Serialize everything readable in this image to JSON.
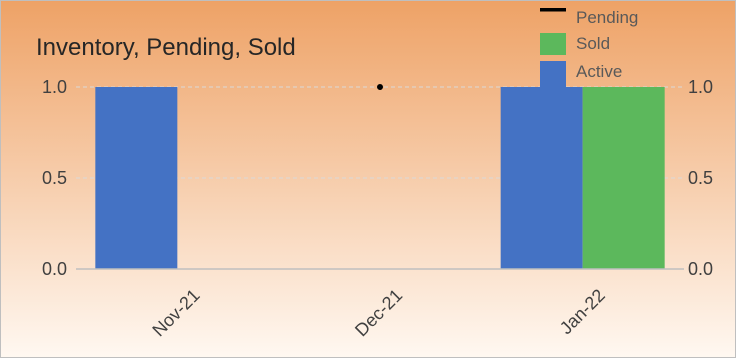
{
  "chart_data": {
    "type": "bar",
    "title": "Inventory, Pending, Sold",
    "xlabel": "",
    "ylabel": "",
    "categories": [
      "Nov-21",
      "Dec-21",
      "Jan-22"
    ],
    "ylim": [
      0,
      1.0
    ],
    "y_ticks": [
      "0.0",
      "0.5",
      "1.0"
    ],
    "y_ticks_right": [
      "0.0",
      "0.5",
      "1.0"
    ],
    "grid": true,
    "legend_position": "top-right",
    "series": [
      {
        "name": "Active",
        "kind": "bar",
        "color": "#4472c4",
        "values": [
          1,
          0,
          1
        ]
      },
      {
        "name": "Sold",
        "kind": "bar",
        "color": "#5cb85c",
        "values": [
          0,
          0,
          1
        ]
      },
      {
        "name": "Pending",
        "kind": "line",
        "color": "#000000",
        "values": [
          null,
          1,
          null
        ]
      }
    ],
    "legend_order": [
      "Pending",
      "Sold",
      "Active"
    ],
    "background_gradient": [
      "#eea266",
      "#fff8f1"
    ]
  }
}
